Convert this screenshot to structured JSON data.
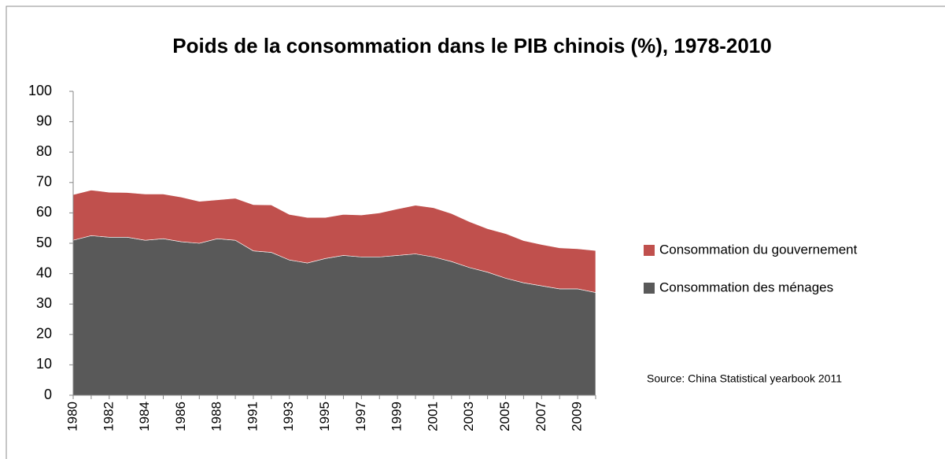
{
  "chart_data": {
    "type": "stacked_area",
    "title": "Poids de la consommation dans le PIB chinois (%), 1978-2010",
    "source": "Source: China Statistical yearbook 2011",
    "categories": [
      "1980",
      null,
      "1982",
      null,
      "1984",
      null,
      "1986",
      null,
      "1988",
      null,
      "1991",
      null,
      "1993",
      null,
      "1995",
      null,
      "1997",
      null,
      "1999",
      null,
      "2001",
      null,
      "2003",
      null,
      "2005",
      null,
      "2007",
      null,
      "2009",
      null
    ],
    "series": [
      {
        "name": "Consommation  des ménages",
        "color": "#595959",
        "values": [
          51,
          52.5,
          52,
          52,
          51,
          51.5,
          50.5,
          50,
          51.5,
          51,
          47.5,
          47,
          44.5,
          43.5,
          45,
          46,
          45.5,
          45.5,
          46,
          46.5,
          45.5,
          44,
          42,
          40.5,
          38.5,
          37,
          36,
          35,
          35,
          33.8
        ]
      },
      {
        "name": "Consommation  du gouvernement",
        "color": "#c0504d",
        "values": [
          15,
          15,
          14.8,
          14.7,
          15.2,
          14.7,
          14.7,
          13.8,
          12.8,
          13.8,
          15.2,
          15.6,
          15,
          15,
          13.5,
          13.5,
          13.8,
          14.5,
          15.3,
          16,
          16.2,
          15.8,
          15.1,
          14.3,
          14.7,
          13.9,
          13.6,
          13.5,
          13.2,
          13.8
        ]
      }
    ],
    "ylim": [
      0,
      100
    ],
    "yticks": [
      0,
      10,
      20,
      30,
      40,
      50,
      60,
      70,
      80,
      90,
      100
    ]
  }
}
